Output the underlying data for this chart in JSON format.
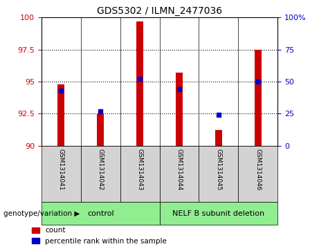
{
  "title": "GDS5302 / ILMN_2477036",
  "samples": [
    "GSM1314041",
    "GSM1314042",
    "GSM1314043",
    "GSM1314044",
    "GSM1314045",
    "GSM1314046"
  ],
  "bar_values": [
    94.8,
    92.5,
    99.7,
    95.7,
    91.2,
    97.5
  ],
  "percentile_values": [
    43,
    27,
    52,
    44,
    24,
    50
  ],
  "bar_color": "#cc0000",
  "percentile_color": "#0000cc",
  "ylim_left": [
    90,
    100
  ],
  "ylim_right": [
    0,
    100
  ],
  "yticks_left": [
    90,
    92.5,
    95,
    97.5,
    100
  ],
  "yticks_right": [
    0,
    25,
    50,
    75,
    100
  ],
  "ytick_labels_left": [
    "90",
    "92.5",
    "95",
    "97.5",
    "100"
  ],
  "ytick_labels_right": [
    "0",
    "25",
    "50",
    "75",
    "100%"
  ],
  "groups": [
    {
      "label": "control",
      "indices": [
        0,
        1,
        2
      ],
      "color": "#90ee90"
    },
    {
      "label": "NELF B subunit deletion",
      "indices": [
        3,
        4,
        5
      ],
      "color": "#90ee90"
    }
  ],
  "group_label_prefix": "genotype/variation",
  "legend_count_label": "count",
  "legend_percentile_label": "percentile rank within the sample",
  "left_tick_color": "#cc0000",
  "right_tick_color": "#0000cc",
  "bar_bottom": 90,
  "bar_width": 0.18,
  "sample_cell_color": "#d3d3d3",
  "grid_dotted_at": [
    92.5,
    95,
    97.5
  ]
}
